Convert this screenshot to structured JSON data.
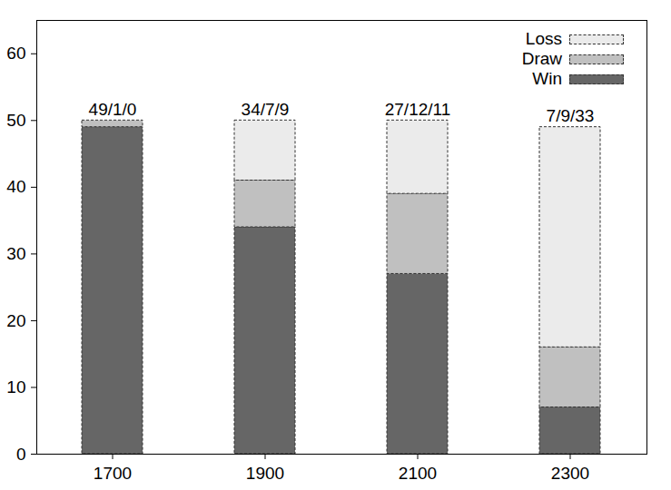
{
  "chart_data": {
    "type": "bar",
    "stacked": true,
    "categories": [
      "1700",
      "1900",
      "2100",
      "2300"
    ],
    "series": [
      {
        "name": "Win",
        "color": "#666666",
        "values": [
          49,
          34,
          27,
          7
        ]
      },
      {
        "name": "Draw",
        "color": "#c0c0c0",
        "values": [
          1,
          7,
          12,
          9
        ]
      },
      {
        "name": "Loss",
        "color": "#ebebeb",
        "values": [
          0,
          9,
          11,
          33
        ]
      }
    ],
    "annotations": [
      "49/1/0",
      "34/7/9",
      "27/12/11",
      "7/9/33"
    ],
    "ylim": [
      0,
      65
    ],
    "yticks": [
      0,
      10,
      20,
      30,
      40,
      50,
      60
    ],
    "legend": "top-right",
    "grid": false
  }
}
